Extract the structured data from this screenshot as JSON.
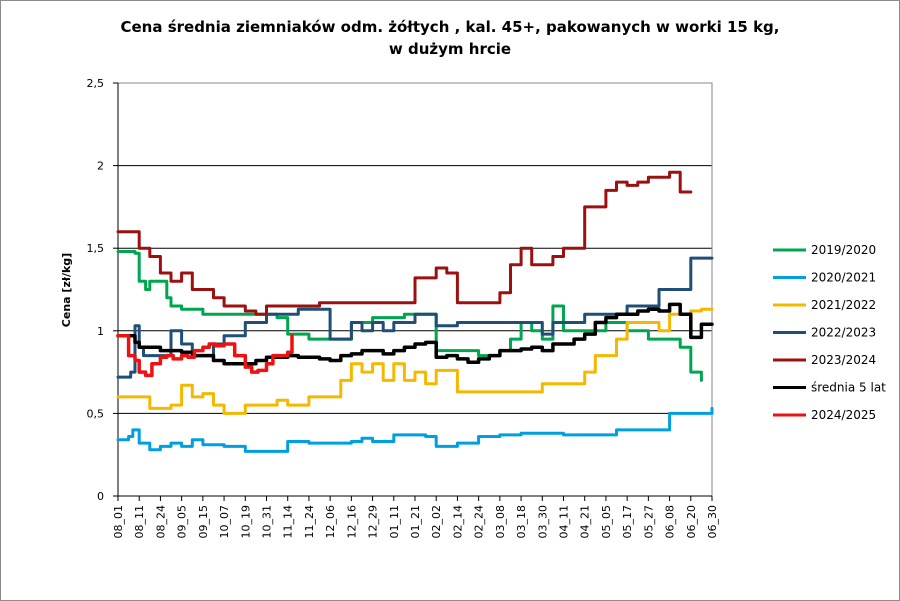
{
  "chart_data": {
    "type": "line",
    "title": [
      "Cena średnia ziemniaków odm. żółtych , kal. 45+, pakowanych w worki 15 kg,",
      "w dużym hrcie"
    ],
    "xlabel": "",
    "ylabel": "Cena [zł/kg]",
    "ylim": [
      0,
      2.5
    ],
    "y_ticks": [
      "0",
      "0,5",
      "1",
      "1,5",
      "2",
      "2,5"
    ],
    "grid": "horizontal",
    "legend_position": "right",
    "categories": [
      "08_01",
      "08_11",
      "08_24",
      "09_05",
      "09_15",
      "10_07",
      "10_19",
      "10_31",
      "11_14",
      "11_24",
      "12_06",
      "12_16",
      "12_29",
      "01_11",
      "01_21",
      "02_02",
      "02_14",
      "02_24",
      "03_08",
      "03_18",
      "03_30",
      "04_11",
      "04_21",
      "05_05",
      "05_17",
      "05_27",
      "06_08",
      "06_20",
      "06_30"
    ],
    "series": [
      {
        "name": "2019/2020",
        "color": "#00a550",
        "width": 3,
        "x": [
          0,
          0.8,
          1,
          1.3,
          1.5,
          2,
          2.3,
          2.5,
          3,
          4,
          5,
          6,
          7,
          7.5,
          8,
          9,
          10,
          11,
          12,
          13,
          13.5,
          14,
          14.5,
          15,
          16,
          17,
          18,
          18.5,
          19,
          19.5,
          20,
          20.5,
          21,
          22,
          23,
          24,
          25,
          26,
          26.5,
          27,
          27.5
        ],
        "y": [
          1.48,
          1.47,
          1.3,
          1.25,
          1.3,
          1.3,
          1.2,
          1.15,
          1.13,
          1.1,
          1.1,
          1.1,
          1.1,
          1.08,
          0.98,
          0.95,
          0.95,
          1.05,
          1.08,
          1.08,
          1.1,
          1.1,
          1.1,
          0.88,
          0.88,
          0.85,
          0.88,
          0.95,
          1.05,
          1.0,
          0.95,
          1.15,
          1.0,
          1.0,
          1.05,
          1.0,
          0.95,
          0.95,
          0.9,
          0.75,
          0.7
        ]
      },
      {
        "name": "2020/2021",
        "color": "#00a0e0",
        "width": 3,
        "x": [
          0,
          0.5,
          0.7,
          1,
          1.5,
          2,
          2.5,
          3,
          3.5,
          4,
          5,
          6,
          6.5,
          7,
          8,
          9,
          10,
          11,
          11.5,
          12,
          13,
          14,
          14.5,
          15,
          16,
          17,
          18,
          19,
          20,
          21,
          22,
          23,
          23.5,
          24,
          25,
          26,
          27,
          28
        ],
        "y": [
          0.34,
          0.36,
          0.4,
          0.32,
          0.28,
          0.3,
          0.32,
          0.3,
          0.34,
          0.31,
          0.3,
          0.27,
          0.27,
          0.27,
          0.33,
          0.32,
          0.32,
          0.33,
          0.35,
          0.33,
          0.37,
          0.37,
          0.36,
          0.3,
          0.32,
          0.36,
          0.37,
          0.38,
          0.38,
          0.37,
          0.37,
          0.37,
          0.4,
          0.4,
          0.4,
          0.5,
          0.5,
          0.53
        ]
      },
      {
        "name": "2021/2022",
        "color": "#f5b800",
        "width": 3,
        "x": [
          0,
          1,
          1.5,
          2,
          2.5,
          3,
          3.5,
          4,
          4.5,
          5,
          6,
          7,
          7.5,
          8,
          8.5,
          9,
          10,
          10.5,
          11,
          11.5,
          12,
          12.5,
          13,
          13.5,
          14,
          14.5,
          15,
          15.5,
          16,
          17,
          18,
          19,
          20,
          21,
          22,
          22.5,
          23,
          23.5,
          24,
          24.5,
          25,
          25.5,
          26,
          26.5,
          27,
          27.5,
          28
        ],
        "y": [
          0.6,
          0.6,
          0.53,
          0.53,
          0.55,
          0.67,
          0.6,
          0.62,
          0.55,
          0.5,
          0.55,
          0.55,
          0.58,
          0.55,
          0.55,
          0.6,
          0.6,
          0.7,
          0.8,
          0.75,
          0.8,
          0.7,
          0.8,
          0.7,
          0.75,
          0.68,
          0.76,
          0.76,
          0.63,
          0.63,
          0.63,
          0.63,
          0.68,
          0.68,
          0.75,
          0.85,
          0.85,
          0.95,
          1.05,
          1.05,
          1.05,
          1.0,
          1.1,
          1.1,
          1.12,
          1.13,
          1.13
        ]
      },
      {
        "name": "2022/2023",
        "color": "#1f4e79",
        "width": 3,
        "x": [
          0,
          0.6,
          0.8,
          1,
          1.2,
          1.5,
          2,
          2.5,
          3,
          3.5,
          4,
          4.5,
          5,
          6,
          6.5,
          7,
          8,
          8.5,
          9,
          10,
          11,
          11.5,
          12,
          12.5,
          13,
          14,
          14.5,
          15,
          15.5,
          16,
          16.5,
          17,
          18,
          19,
          19.5,
          20,
          20.5,
          21,
          22,
          23,
          24,
          25,
          25.5,
          26,
          26.5,
          27,
          28
        ],
        "y": [
          0.72,
          0.75,
          1.03,
          0.9,
          0.85,
          0.85,
          0.85,
          1.0,
          0.92,
          0.85,
          0.85,
          0.92,
          0.97,
          1.05,
          1.05,
          1.1,
          1.1,
          1.13,
          1.13,
          0.95,
          1.05,
          1.0,
          1.05,
          1.0,
          1.05,
          1.1,
          1.1,
          1.03,
          1.03,
          1.05,
          1.05,
          1.05,
          1.05,
          1.05,
          1.05,
          0.98,
          1.05,
          1.05,
          1.1,
          1.1,
          1.15,
          1.15,
          1.25,
          1.25,
          1.25,
          1.44,
          1.44
        ]
      },
      {
        "name": "2023/2024",
        "color": "#9c1010",
        "width": 3,
        "x": [
          0,
          0.6,
          1,
          1.5,
          2,
          2.5,
          3,
          3.5,
          4,
          4.5,
          5,
          6,
          6.5,
          7,
          8,
          9,
          9.5,
          10,
          11,
          12,
          13,
          14,
          14.5,
          15,
          15.5,
          16,
          16.5,
          17,
          18,
          18.5,
          19,
          19.5,
          20,
          20.5,
          21,
          21.5,
          22,
          22.5,
          23,
          23.5,
          24,
          24.5,
          25,
          25.5,
          26,
          26.5,
          27
        ],
        "y": [
          1.6,
          1.6,
          1.5,
          1.45,
          1.35,
          1.3,
          1.35,
          1.25,
          1.25,
          1.2,
          1.15,
          1.12,
          1.1,
          1.15,
          1.15,
          1.15,
          1.17,
          1.17,
          1.17,
          1.17,
          1.17,
          1.32,
          1.32,
          1.38,
          1.35,
          1.17,
          1.17,
          1.17,
          1.23,
          1.4,
          1.5,
          1.4,
          1.4,
          1.45,
          1.5,
          1.5,
          1.75,
          1.75,
          1.85,
          1.9,
          1.88,
          1.9,
          1.93,
          1.93,
          1.96,
          1.84,
          1.84
        ]
      },
      {
        "name": "średnia 5 lat",
        "color": "#000000",
        "width": 3.5,
        "x": [
          0,
          0.5,
          0.8,
          1,
          1.5,
          2,
          2.5,
          3,
          3.5,
          4,
          4.5,
          5,
          5.5,
          6,
          6.5,
          7,
          7.5,
          8,
          8.5,
          9,
          9.5,
          10,
          10.5,
          11,
          11.5,
          12,
          12.5,
          13,
          13.5,
          14,
          14.5,
          15,
          15.5,
          16,
          16.5,
          17,
          17.5,
          18,
          18.5,
          19,
          19.5,
          20,
          20.5,
          21,
          21.5,
          22,
          22.5,
          23,
          23.5,
          24,
          24.5,
          25,
          25.5,
          26,
          26.5,
          27,
          27.2,
          27.5,
          28
        ],
        "y": [
          0.97,
          0.97,
          0.93,
          0.9,
          0.9,
          0.88,
          0.88,
          0.87,
          0.85,
          0.85,
          0.82,
          0.8,
          0.8,
          0.8,
          0.82,
          0.84,
          0.84,
          0.85,
          0.84,
          0.84,
          0.83,
          0.82,
          0.85,
          0.86,
          0.88,
          0.88,
          0.86,
          0.88,
          0.9,
          0.92,
          0.93,
          0.84,
          0.85,
          0.83,
          0.81,
          0.83,
          0.85,
          0.88,
          0.88,
          0.89,
          0.9,
          0.88,
          0.92,
          0.92,
          0.95,
          0.98,
          1.05,
          1.08,
          1.1,
          1.1,
          1.12,
          1.13,
          1.12,
          1.16,
          1.1,
          0.96,
          0.96,
          1.04,
          1.04
        ]
      },
      {
        "name": "2024/2025",
        "color": "#ee1111",
        "width": 3.5,
        "x": [
          0,
          0.5,
          0.8,
          1,
          1.3,
          1.6,
          2,
          2.3,
          2.6,
          3,
          3.3,
          3.6,
          4,
          4.3,
          4.6,
          5,
          5.5,
          6,
          6.3,
          6.6,
          7,
          7.3,
          7.6,
          8,
          8.2
        ],
        "y": [
          0.97,
          0.85,
          0.82,
          0.75,
          0.73,
          0.8,
          0.84,
          0.85,
          0.83,
          0.85,
          0.84,
          0.88,
          0.9,
          0.92,
          0.91,
          0.92,
          0.85,
          0.78,
          0.75,
          0.76,
          0.8,
          0.85,
          0.85,
          0.87,
          0.97
        ]
      }
    ]
  }
}
